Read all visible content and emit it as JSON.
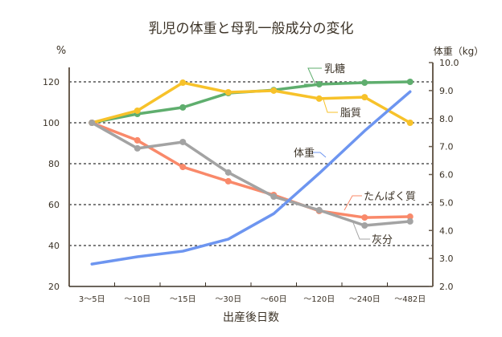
{
  "chart_data": {
    "type": "line",
    "title": "乳児の体重と母乳一般成分の変化",
    "xlabel": "出産後日数",
    "ylabel_left": "%",
    "ylabel_right": "体重（kg）",
    "categories": [
      "3〜5日",
      "〜10日",
      "〜15日",
      "〜30日",
      "〜60日",
      "〜120日",
      "〜240日",
      "〜482日"
    ],
    "ylim_left": [
      20,
      120
    ],
    "yticks_left": [
      "20",
      "40",
      "60",
      "80",
      "100",
      "120"
    ],
    "ylim_right": [
      2.0,
      10.0
    ],
    "yticks_right": [
      "2.0",
      "3.0",
      "4.0",
      "5.0",
      "6.0",
      "7.0",
      "8.0",
      "9.0",
      "10.0"
    ],
    "grid": "dashed horizontal at 40,60,80,100,120",
    "series": [
      {
        "name": "乳糖",
        "axis": "left",
        "color": "#5fae6e",
        "markers": true,
        "values": [
          100,
          104.3,
          107.5,
          114.5,
          116,
          118.8,
          119.6,
          120
        ]
      },
      {
        "name": "脂質",
        "axis": "left",
        "color": "#f7c22a",
        "markers": true,
        "values": [
          100,
          105.9,
          119.6,
          114.9,
          115.7,
          111.8,
          112.5,
          100
        ]
      },
      {
        "name": "たんぱく質",
        "axis": "left",
        "color": "#f9896a",
        "markers": true,
        "values": [
          100,
          91.4,
          78.4,
          71.4,
          64.7,
          56.9,
          53.7,
          54.1
        ]
      },
      {
        "name": "灰分",
        "axis": "left",
        "color": "#a3a3a3",
        "markers": true,
        "values": [
          100,
          87.5,
          90.6,
          75.7,
          63.9,
          57.3,
          49.8,
          51.8
        ]
      },
      {
        "name": "体重",
        "axis": "right",
        "color": "#6d95f0",
        "markers": false,
        "values": [
          2.8,
          3.06,
          3.26,
          3.69,
          4.6,
          6.04,
          7.56,
          8.96
        ]
      }
    ]
  }
}
